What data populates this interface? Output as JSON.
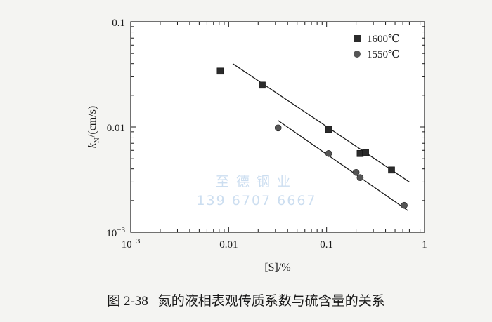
{
  "chart_data": {
    "type": "scatter",
    "x_scale": "log",
    "y_scale": "log",
    "xlim": [
      0.001,
      1
    ],
    "ylim": [
      0.001,
      0.1
    ],
    "x_ticks": [
      {
        "value": 0.001,
        "base": "10",
        "exp": "−3"
      },
      {
        "value": 0.01,
        "label": "0.01"
      },
      {
        "value": 0.1,
        "label": "0.1"
      },
      {
        "value": 1,
        "label": "1"
      }
    ],
    "y_ticks": [
      {
        "value": 0.001,
        "base": "10",
        "exp": "−3"
      },
      {
        "value": 0.01,
        "label": "0.01"
      },
      {
        "value": 0.1,
        "label": "0.1"
      }
    ],
    "xlabel": "[S]/%",
    "ylabel": {
      "main": "k",
      "sub": "N",
      "rest": "/(cm/s)"
    },
    "legend_position": "top-right",
    "grid": false,
    "series": [
      {
        "name": "1600℃",
        "marker": "square",
        "color": "#2b2b2b",
        "points": [
          [
            0.0082,
            0.034
          ],
          [
            0.022,
            0.025
          ],
          [
            0.105,
            0.0095
          ],
          [
            0.22,
            0.0056
          ],
          [
            0.25,
            0.0057
          ],
          [
            0.46,
            0.0039
          ]
        ],
        "fit_line": [
          [
            0.011,
            0.04
          ],
          [
            0.7,
            0.003
          ]
        ]
      },
      {
        "name": "1550℃",
        "marker": "circle",
        "color": "#555555",
        "points": [
          [
            0.032,
            0.0098
          ],
          [
            0.105,
            0.0056
          ],
          [
            0.2,
            0.0037
          ],
          [
            0.22,
            0.0033
          ],
          [
            0.62,
            0.0018
          ]
        ],
        "fit_line": [
          [
            0.032,
            0.0115
          ],
          [
            0.68,
            0.0016
          ]
        ]
      }
    ]
  },
  "watermark": {
    "line1": "至德钢业",
    "line2": "139 6707 6667"
  },
  "caption": {
    "number": "图 2-38",
    "text": "氮的液相表观传质系数与硫含量的关系"
  }
}
